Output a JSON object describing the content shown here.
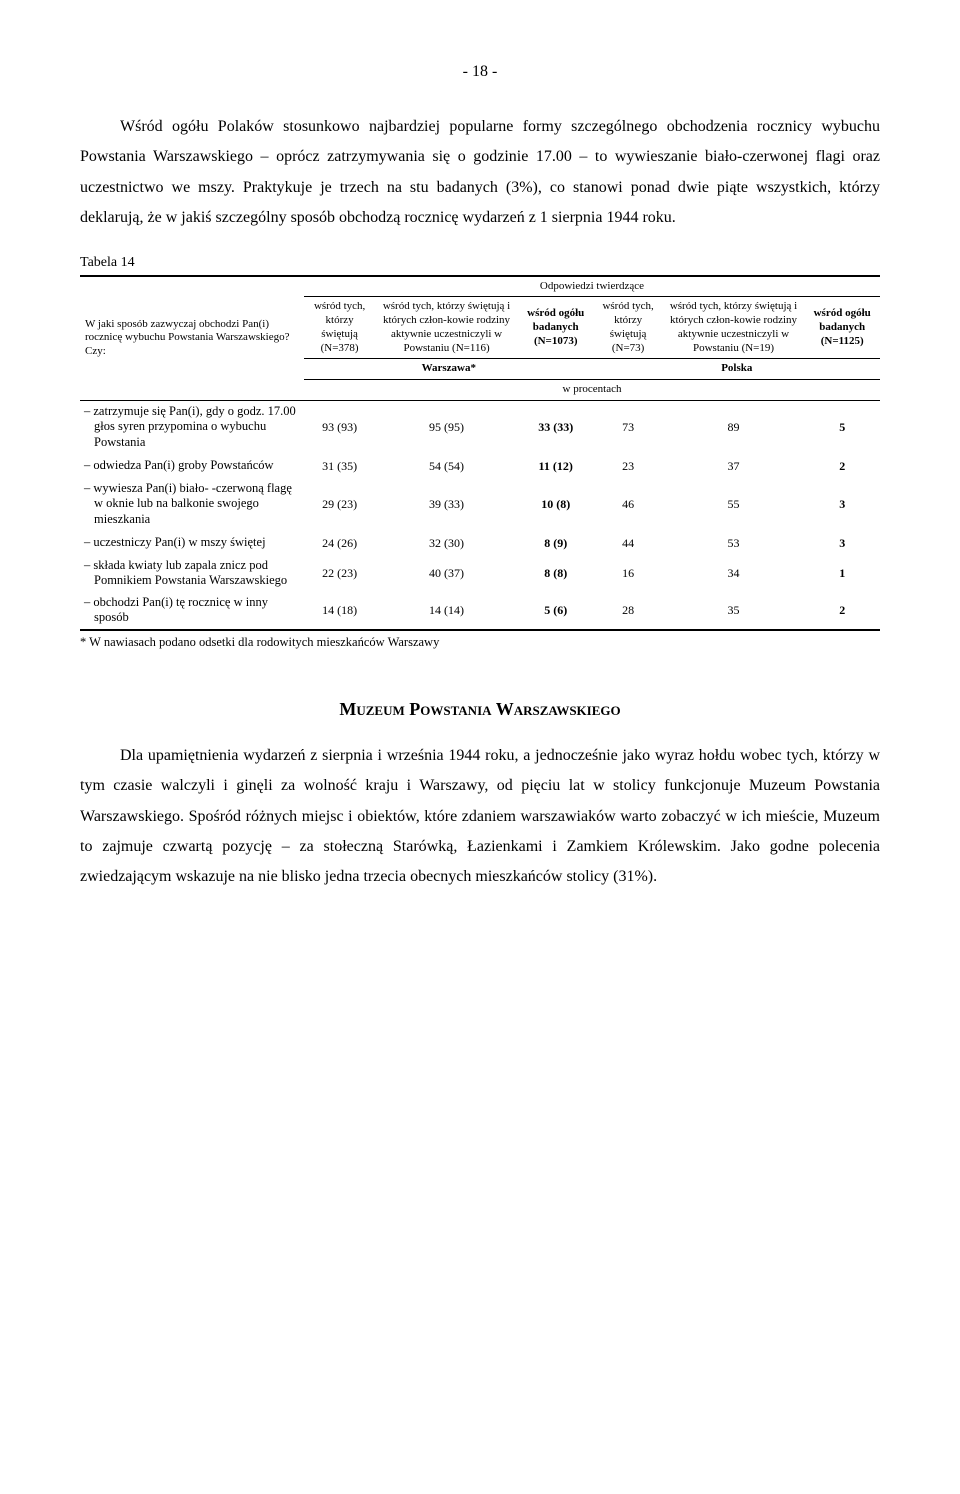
{
  "page_number": "- 18 -",
  "intro_paragraph": "Wśród ogółu Polaków stosunkowo najbardziej popularne formy szczególnego obchodzenia rocznicy wybuchu Powstania Warszawskiego – oprócz zatrzymywania się o godzinie 17.00 – to wywieszanie biało-czerwonej flagi oraz uczestnictwo we mszy. Praktykuje je trzech na stu badanych (3%), co stanowi ponad dwie piąte wszystkich, którzy deklarują, że w jakiś szczególny sposób obchodzą rocznicę wydarzeń z 1 sierpnia 1944 roku.",
  "table14": {
    "caption": "Tabela 14",
    "stub_question": "W jaki sposób zazwyczaj obchodzi Pan(i) rocznicę wybuchu Powstania Warszawskiego? Czy:",
    "header_top": "Odpowiedzi twierdzące",
    "cols": {
      "c1": "wśród tych, którzy świętują (N=378)",
      "c2": "wśród tych, którzy świętują i których człon-kowie rodziny aktywnie uczestniczyli w Powstaniu (N=116)",
      "c3": "wśród ogółu badanych (N=1073)",
      "c4": "wśród tych, którzy świętują (N=73)",
      "c5": "wśród tych, którzy świętują i których człon-kowie rodziny aktywnie uczestniczyli w Powstaniu (N=19)",
      "c6": "wśród ogółu badanych (N=1125)"
    },
    "city_left": "Warszawa*",
    "city_right": "Polska",
    "middle_label": "w procentach",
    "rows": [
      {
        "label": "zatrzymuje się Pan(i), gdy o godz. 17.00 głos syren przypomina o wybuchu Powstania",
        "v": [
          "93 (93)",
          "95 (95)",
          "33 (33)",
          "73",
          "89",
          "5"
        ]
      },
      {
        "label": "odwiedza Pan(i) groby Powstańców",
        "v": [
          "31 (35)",
          "54 (54)",
          "11 (12)",
          "23",
          "37",
          "2"
        ]
      },
      {
        "label": "wywiesza Pan(i) biało- -czerwoną flagę w oknie lub na balkonie swojego mieszkania",
        "v": [
          "29 (23)",
          "39 (33)",
          "10 (8)",
          "46",
          "55",
          "3"
        ]
      },
      {
        "label": "uczestniczy Pan(i) w mszy świętej",
        "v": [
          "24 (26)",
          "32 (30)",
          "8 (9)",
          "44",
          "53",
          "3"
        ]
      },
      {
        "label": "składa kwiaty lub zapala znicz pod Pomnikiem Powstania Warszawskiego",
        "v": [
          "22 (23)",
          "40 (37)",
          "8 (8)",
          "16",
          "34",
          "1"
        ]
      },
      {
        "label": "obchodzi Pan(i) tę rocznicę w inny sposób",
        "v": [
          "14 (18)",
          "14 (14)",
          "5 (6)",
          "28",
          "35",
          "2"
        ]
      }
    ],
    "footnote": "* W nawiasach podano odsetki dla rodowitych mieszkańców Warszawy"
  },
  "section_heading": "Muzeum Powstania Warszawskiego",
  "closing_paragraph": "Dla upamiętnienia wydarzeń z sierpnia i września 1944 roku, a jednocześnie jako wyraz hołdu wobec tych, którzy w tym czasie walczyli i ginęli za wolność kraju i Warszawy, od pięciu lat w stolicy funkcjonuje Muzeum Powstania Warszawskiego. Spośród różnych miejsc i obiektów, które zdaniem warszawiaków warto zobaczyć w ich mieście, Muzeum to zajmuje czwartą pozycję – za stołeczną Starówką, Łazienkami i Zamkiem Królewskim. Jako godne polecenia zwiedzającym wskazuje na nie blisko jedna trzecia obecnych mieszkańców stolicy (31%)."
}
